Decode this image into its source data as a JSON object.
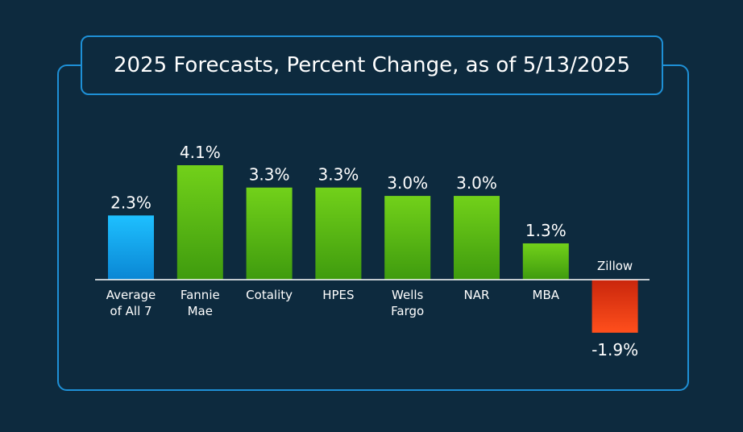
{
  "chart_data": {
    "type": "bar",
    "title": "2025 Forecasts, Percent Change, as of 5/13/2025",
    "categories": [
      [
        "Average",
        "of All 7"
      ],
      [
        "Fannie",
        "Mae"
      ],
      [
        "Cotality"
      ],
      [
        "HPES"
      ],
      [
        "Wells",
        "Fargo"
      ],
      [
        "NAR"
      ],
      [
        "MBA"
      ],
      [
        "Zillow"
      ]
    ],
    "values": [
      2.3,
      4.1,
      3.3,
      3.3,
      3.0,
      3.0,
      1.3,
      -1.9
    ],
    "value_labels": [
      "2.3%",
      "4.1%",
      "3.3%",
      "3.3%",
      "3.0%",
      "3.0%",
      "1.3%",
      "-1.9%"
    ],
    "ylim": [
      -1.9,
      4.1
    ],
    "grid": false,
    "colors": {
      "average": [
        "#1ec0ff",
        "#0a86d4"
      ],
      "positive": [
        "#72d11a",
        "#3f9b0e"
      ],
      "negative": [
        "#c9260c",
        "#ff4f1c"
      ],
      "frame": "#1e90d6",
      "background": "#0d2a3e",
      "baseline": "#ffffff"
    }
  }
}
